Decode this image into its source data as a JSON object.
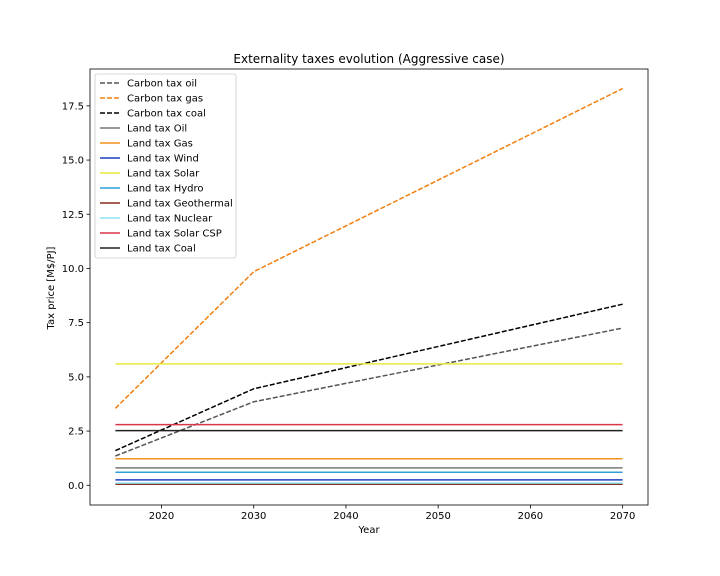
{
  "chart_data": {
    "type": "line",
    "title": "Externality taxes evolution (Aggressive case)",
    "xlabel": "Year",
    "ylabel": "Tax price [M$/PJ]",
    "xlim": [
      2012.25,
      2072.75
    ],
    "ylim": [
      -0.91,
      19.2
    ],
    "xticks": [
      2020,
      2030,
      2040,
      2050,
      2060,
      2070
    ],
    "xtick_labels": [
      "2020",
      "2030",
      "2040",
      "2050",
      "2060",
      "2070"
    ],
    "yticks": [
      0.0,
      2.5,
      5.0,
      7.5,
      10.0,
      12.5,
      15.0,
      17.5
    ],
    "ytick_labels": [
      "0.0",
      "2.5",
      "5.0",
      "7.5",
      "10.0",
      "12.5",
      "15.0",
      "17.5"
    ],
    "grid": false,
    "legend_position": "upper-left",
    "x": [
      2015,
      2030,
      2070
    ],
    "series": [
      {
        "name": "Carbon tax oil",
        "values": [
          1.35,
          3.85,
          7.25
        ],
        "color": "#555555",
        "dash": true
      },
      {
        "name": "Carbon tax gas",
        "values": [
          3.55,
          9.85,
          18.3
        ],
        "color": "#f07f0e",
        "dash": true
      },
      {
        "name": "Carbon tax coal",
        "values": [
          1.6,
          4.45,
          8.35
        ],
        "color": "#000000",
        "dash": true
      },
      {
        "name": "Land tax Oil",
        "values": [
          0.8,
          0.8,
          0.8
        ],
        "color": "#777777",
        "dash": false
      },
      {
        "name": "Land tax Gas",
        "values": [
          1.22,
          1.22,
          1.22
        ],
        "color": "#f2911c",
        "dash": false
      },
      {
        "name": "Land tax Wind",
        "values": [
          0.25,
          0.25,
          0.25
        ],
        "color": "#1f3fbf",
        "dash": false
      },
      {
        "name": "Land tax Solar",
        "values": [
          5.6,
          5.6,
          5.6
        ],
        "color": "#e8e83a",
        "dash": false
      },
      {
        "name": "Land tax Hydro",
        "values": [
          0.6,
          0.6,
          0.6
        ],
        "color": "#2f9fd8",
        "dash": false
      },
      {
        "name": "Land tax Geothermal",
        "values": [
          0.05,
          0.05,
          0.05
        ],
        "color": "#8c2a1a",
        "dash": false
      },
      {
        "name": "Land tax Nuclear",
        "values": [
          0.1,
          0.1,
          0.1
        ],
        "color": "#8fdff0",
        "dash": false
      },
      {
        "name": "Land tax Solar CSP",
        "values": [
          2.8,
          2.8,
          2.8
        ],
        "color": "#d8374a",
        "dash": false
      },
      {
        "name": "Land tax Coal",
        "values": [
          2.52,
          2.52,
          2.52
        ],
        "color": "#222222",
        "dash": false
      }
    ]
  }
}
